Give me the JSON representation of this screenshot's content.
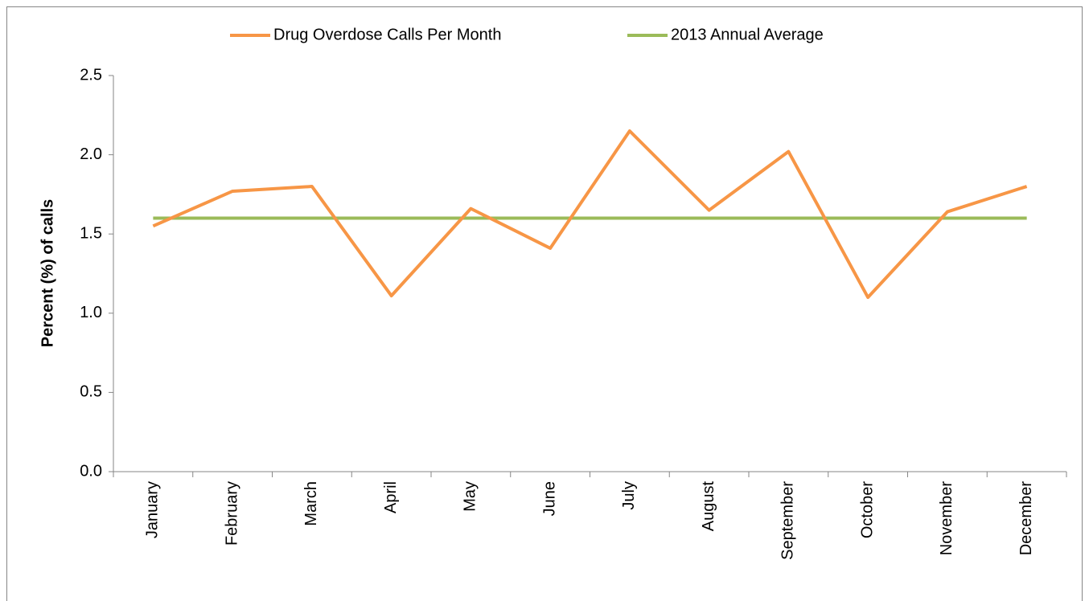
{
  "chart_data": {
    "type": "line",
    "y_label": "Percent (%) of calls",
    "categories": [
      "January",
      "February",
      "March",
      "April",
      "May",
      "June",
      "July",
      "August",
      "September",
      "October",
      "November",
      "December"
    ],
    "series": [
      {
        "name": "Drug Overdose Calls Per Month",
        "color": "#f79646",
        "values": [
          1.55,
          1.77,
          1.8,
          1.11,
          1.66,
          1.41,
          2.15,
          1.65,
          2.02,
          1.1,
          1.64,
          1.8
        ]
      },
      {
        "name": "2013 Annual Average",
        "color": "#9bbb59",
        "values": [
          1.6,
          1.6,
          1.6,
          1.6,
          1.6,
          1.6,
          1.6,
          1.6,
          1.6,
          1.6,
          1.6,
          1.6
        ]
      }
    ],
    "ylim": [
      0,
      2.5
    ],
    "yticks": [
      {
        "value": 0,
        "label": "0.0"
      },
      {
        "value": 0.5,
        "label": "0.5"
      },
      {
        "value": 1,
        "label": "1.0"
      },
      {
        "value": 1.5,
        "label": "1.5"
      },
      {
        "value": 2,
        "label": "2.0"
      },
      {
        "value": 2.5,
        "label": "2.5"
      }
    ],
    "grid": false,
    "legend": "top"
  }
}
